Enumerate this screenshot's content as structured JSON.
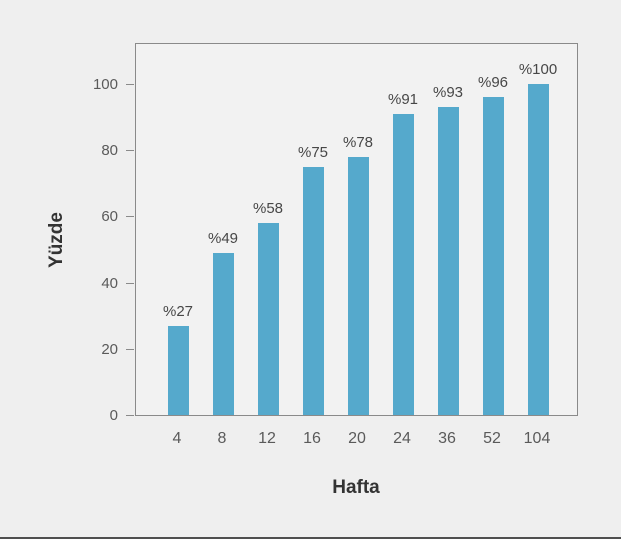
{
  "chart_data": {
    "type": "bar",
    "title": "",
    "xlabel": "Hafta",
    "ylabel": "Yüzde",
    "categories": [
      "4",
      "8",
      "12",
      "16",
      "20",
      "24",
      "36",
      "52",
      "104"
    ],
    "values": [
      27,
      49,
      58,
      75,
      78,
      91,
      93,
      96,
      100
    ],
    "bar_labels": [
      "%27",
      "%49",
      "%58",
      "%75",
      "%78",
      "%91",
      "%93",
      "%96",
      "%100"
    ],
    "ylim": [
      0,
      112.7
    ],
    "yticks": [
      0,
      20,
      40,
      60,
      80,
      100
    ],
    "grid": "off",
    "legend": "none",
    "bar_color": "#55a9cc",
    "plot_border_color": "#8a8a8a",
    "background_color": "#efefef",
    "plot_background_color": "#f2f2f2",
    "tick_label_color": "#5a5a5a",
    "value_label_color": "#474747",
    "axis_title_color": "#333333"
  }
}
